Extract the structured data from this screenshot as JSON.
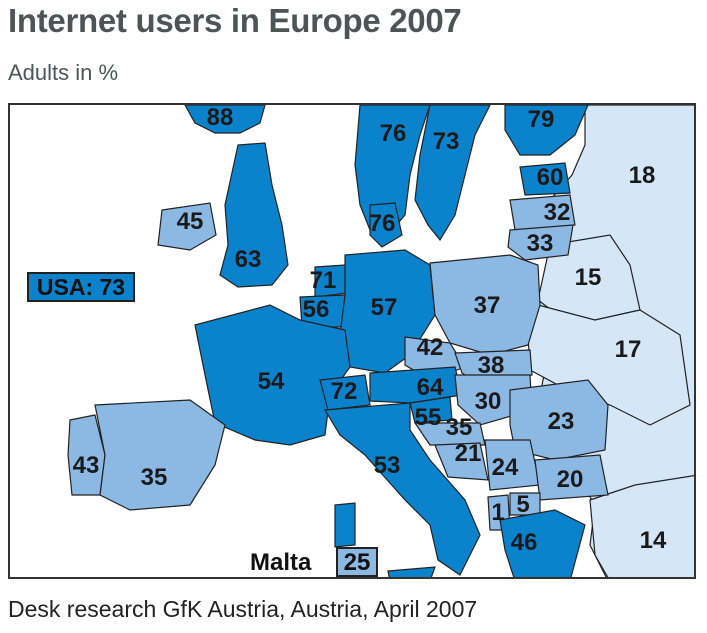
{
  "title": "Internet users in Europe 2007",
  "subtitle": "Adults in %",
  "source": "Desk research GfK Austria, Austria, April 2007",
  "callouts": {
    "usa_label": "USA: 73",
    "malta_name": "Malta",
    "malta_value": "25"
  },
  "colors": {
    "high": "#0a82cc",
    "mid": "#8cb8e4",
    "low": "#d5e6f7",
    "border": "#222222"
  },
  "regions": [
    {
      "key": "iceland",
      "value": "88",
      "tier": "high"
    },
    {
      "key": "norway",
      "value": "76",
      "tier": "high"
    },
    {
      "key": "sweden",
      "value": "73",
      "tier": "high"
    },
    {
      "key": "finland",
      "value": "79",
      "tier": "high"
    },
    {
      "key": "russia",
      "value": "18",
      "tier": "low"
    },
    {
      "key": "estonia",
      "value": "60",
      "tier": "high"
    },
    {
      "key": "latvia",
      "value": "32",
      "tier": "mid"
    },
    {
      "key": "lithuania",
      "value": "33",
      "tier": "mid"
    },
    {
      "key": "ireland",
      "value": "45",
      "tier": "mid"
    },
    {
      "key": "denmark",
      "value": "76",
      "tier": "high"
    },
    {
      "key": "united_kingdom",
      "value": "63",
      "tier": "high"
    },
    {
      "key": "belarus",
      "value": "15",
      "tier": "low"
    },
    {
      "key": "netherlands",
      "value": "71",
      "tier": "high"
    },
    {
      "key": "belgium",
      "value": "56",
      "tier": "high"
    },
    {
      "key": "germany",
      "value": "57",
      "tier": "high"
    },
    {
      "key": "poland",
      "value": "37",
      "tier": "mid"
    },
    {
      "key": "ukraine",
      "value": "17",
      "tier": "low"
    },
    {
      "key": "czech_republic",
      "value": "42",
      "tier": "mid"
    },
    {
      "key": "slovakia",
      "value": "38",
      "tier": "mid"
    },
    {
      "key": "france",
      "value": "54",
      "tier": "high"
    },
    {
      "key": "switzerland",
      "value": "72",
      "tier": "high"
    },
    {
      "key": "austria",
      "value": "64",
      "tier": "high"
    },
    {
      "key": "hungary",
      "value": "30",
      "tier": "mid"
    },
    {
      "key": "slovenia",
      "value": "55",
      "tier": "high"
    },
    {
      "key": "croatia",
      "value": "35",
      "tier": "mid"
    },
    {
      "key": "romania",
      "value": "23",
      "tier": "mid"
    },
    {
      "key": "bosnia",
      "value": "21",
      "tier": "mid"
    },
    {
      "key": "serbia",
      "value": "24",
      "tier": "mid"
    },
    {
      "key": "portugal",
      "value": "43",
      "tier": "mid"
    },
    {
      "key": "spain",
      "value": "35",
      "tier": "mid"
    },
    {
      "key": "italy",
      "value": "53",
      "tier": "high"
    },
    {
      "key": "bulgaria",
      "value": "20",
      "tier": "mid"
    },
    {
      "key": "albania",
      "value": "1",
      "tier": "mid"
    },
    {
      "key": "macedonia",
      "value": "5",
      "tier": "mid"
    },
    {
      "key": "greece",
      "value": "46",
      "tier": "high"
    },
    {
      "key": "turkey",
      "value": "14",
      "tier": "low"
    }
  ]
}
